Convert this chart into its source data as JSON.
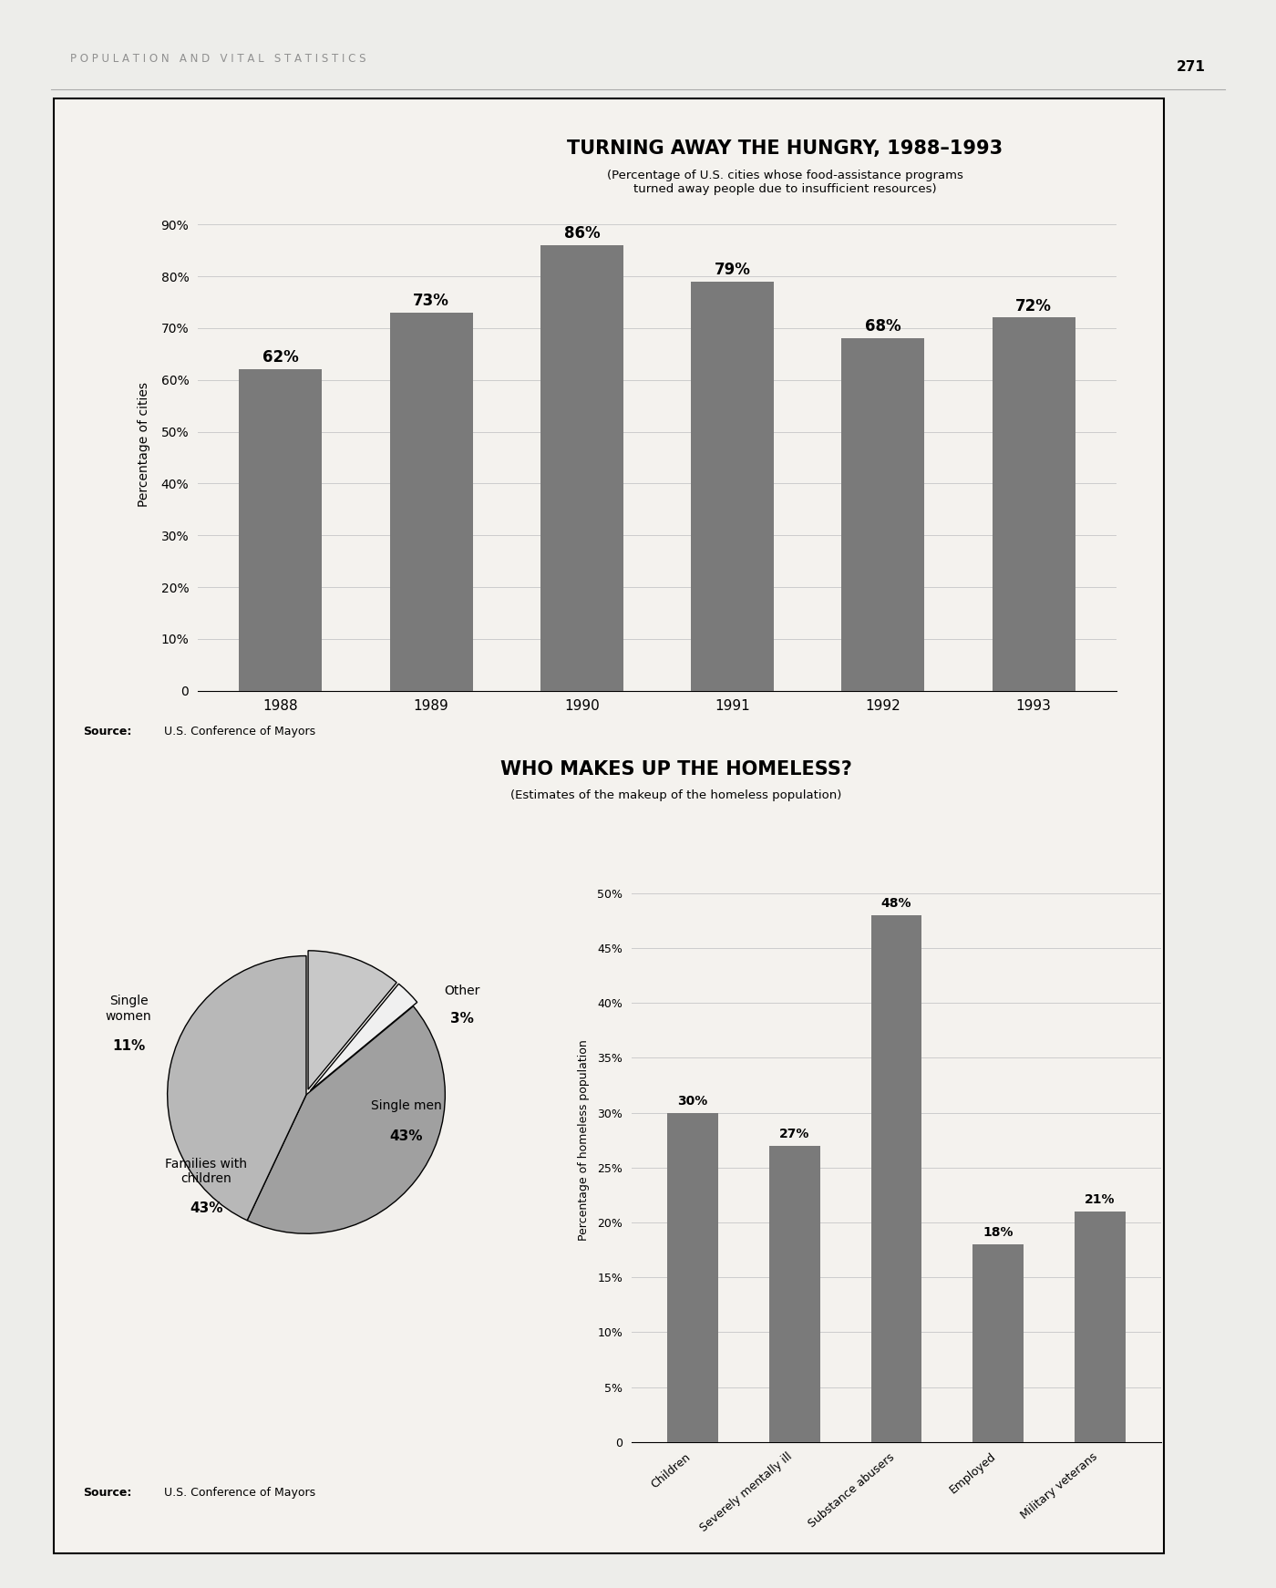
{
  "page_header": "P O P U L A T I O N   A N D   V I T A L   S T A T I S T I C S",
  "page_number": "271",
  "chart1": {
    "title": "TURNING AWAY THE HUNGRY, 1988–1993",
    "subtitle": "(Percentage of U.S. cities whose food-assistance programs\nturned away people due to insufficient resources)",
    "years": [
      "1988",
      "1989",
      "1990",
      "1991",
      "1992",
      "1993"
    ],
    "values": [
      62,
      73,
      86,
      79,
      68,
      72
    ],
    "ylabel": "Percentage of cities",
    "yticks": [
      0,
      10,
      20,
      30,
      40,
      50,
      60,
      70,
      80,
      90
    ],
    "ytick_labels": [
      "0",
      "10%",
      "20%",
      "30%",
      "40%",
      "50%",
      "60%",
      "70%",
      "80%",
      "90%"
    ],
    "source_bold": "Source:",
    "source_rest": "  U.S. Conference of Mayors"
  },
  "chart2": {
    "title": "WHO MAKES UP THE HOMELESS?",
    "subtitle": "(Estimates of the makeup of the homeless population)",
    "pie_values": [
      11,
      3,
      43,
      43
    ],
    "pie_colors": [
      "#c8c8c8",
      "#f0f0f0",
      "#a0a0a0",
      "#b8b8b8"
    ],
    "pie_pct": [
      "11%",
      "3%",
      "43%",
      "43%"
    ],
    "pie_label_texts": [
      "Single\nwomen",
      "Other",
      "Single men",
      "Families with\nchildren"
    ],
    "bar_categories": [
      "Children",
      "Severely mentally ill",
      "Substance abusers",
      "Employed",
      "Military veterans"
    ],
    "bar_values": [
      30,
      27,
      48,
      18,
      21
    ],
    "ylabel": "Percentage of homeless population",
    "yticks": [
      0,
      5,
      10,
      15,
      20,
      25,
      30,
      35,
      40,
      45,
      50
    ],
    "ytick_labels": [
      "0",
      "5%",
      "10%",
      "15%",
      "20%",
      "25%",
      "30%",
      "35%",
      "40%",
      "45%",
      "50%"
    ],
    "source_bold": "Source:",
    "source_rest": "  U.S. Conference of Mayors"
  },
  "bg_color": "#ededea",
  "box_bg": "#f4f2ee",
  "bar_color": "#7a7a7a"
}
